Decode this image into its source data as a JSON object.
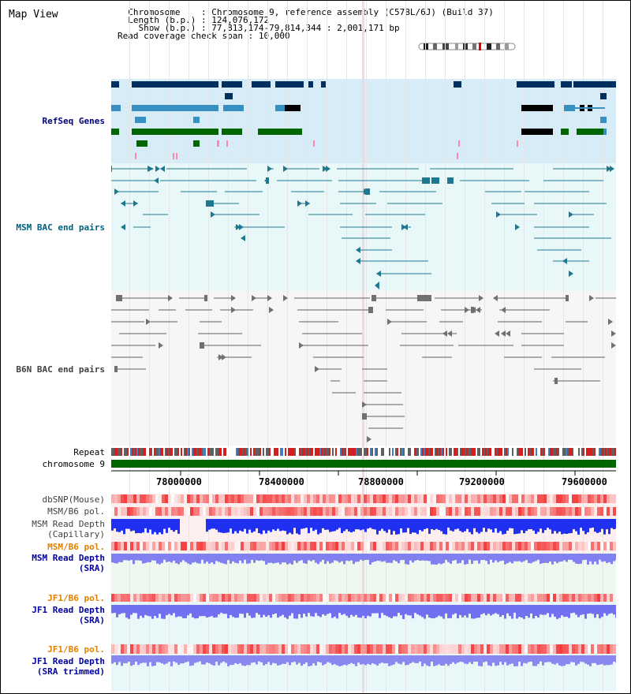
{
  "title": "Map View",
  "info": {
    "chromosome_key": "Chromosome",
    "chromosome_value": "Chromosome 9, reference assembly (C57BL/6J) (Build 37)",
    "length_key": "Length (b.p.)",
    "length_value": "124,076,172",
    "show_key": "Show (b.p.)",
    "show_value": "77,813,174-79,814,344 : 2,001,171 bp",
    "coverage_key": "Read coverage check span",
    "coverage_value": "10,000"
  },
  "tracks": {
    "refseq": "RefSeq Genes",
    "msm_bac": "MSM BAC end pairs",
    "b6n_bac": "B6N BAC end pairs",
    "repeat": "Repeat",
    "chromosome": "chromosome 9",
    "dbsnp": "dbSNP(Mouse)",
    "msm_b6_pol1": "MSM/B6 pol.",
    "msm_depth_cap_1": "MSM Read Depth",
    "msm_depth_cap_2": "(Capillary)",
    "msm_b6_pol2": "MSM/B6 pol.",
    "msm_depth_sra_1": "MSM Read Depth",
    "msm_depth_sra_2": "(SRA)",
    "jf1_b6_pol1": "JF1/B6 pol.",
    "jf1_depth_sra_1": "JF1 Read Depth",
    "jf1_depth_sra_2": "(SRA)",
    "jf1_b6_pol2": "JF1/B6 pol.",
    "jf1_depth_trim_1": "JF1 Read Depth",
    "jf1_depth_trim_2": "(SRA trimmed)"
  },
  "ruler": {
    "ticks": [
      "78000000",
      "78400000",
      "78800000",
      "79200000",
      "79600000"
    ]
  },
  "colors": {
    "refseq_bg": "#d8ecf8",
    "msm_bac_bg": "#e8f8f8",
    "b6n_bac_bg": "#f4f4f4",
    "msm_label": "#006080",
    "refseq_label": "#000080",
    "orange_label": "#e08000",
    "blue_label": "#0000a0",
    "chromosome_bar": "#006600",
    "msm_bac_line": "#207890",
    "b6n_bac_line": "#606060"
  }
}
